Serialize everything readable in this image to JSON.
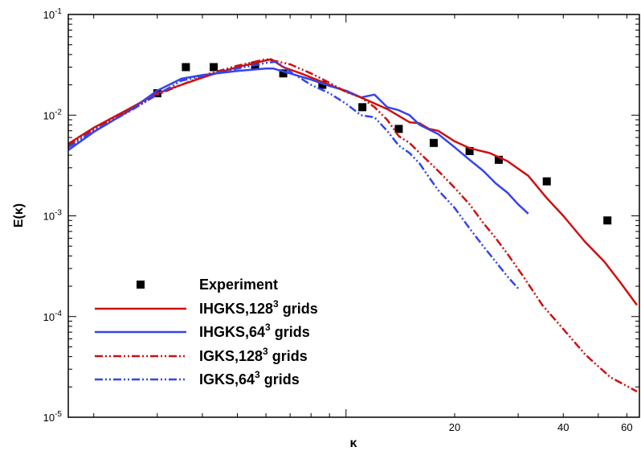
{
  "chart_data": {
    "type": "line",
    "xlabel": "κ",
    "ylabel": "E(κ)",
    "xscale": "log",
    "yscale": "log",
    "xlim": [
      1.7,
      65
    ],
    "ylim": [
      1e-05,
      0.1
    ],
    "x_tick_labels": [
      {
        "value": 20,
        "label": "20"
      },
      {
        "value": 40,
        "label": "40"
      },
      {
        "value": 60,
        "label": "60"
      }
    ],
    "y_tick_labels": [
      {
        "value": 0.1,
        "base": "10",
        "exp": "-1"
      },
      {
        "value": 0.01,
        "base": "10",
        "exp": "-2"
      },
      {
        "value": 0.001,
        "base": "10",
        "exp": "-3"
      },
      {
        "value": 0.0001,
        "base": "10",
        "exp": "-4"
      },
      {
        "value": 1e-05,
        "base": "10",
        "exp": "-5"
      }
    ],
    "legend_placement": "bottom-left",
    "grid": false,
    "series": [
      {
        "name": "Experiment",
        "label_parts": [
          "Experiment"
        ],
        "kind": "marker",
        "color": "#000000",
        "points": [
          [
            3.0,
            0.0165
          ],
          [
            3.6,
            0.03
          ],
          [
            4.3,
            0.03
          ],
          [
            5.6,
            0.031
          ],
          [
            6.7,
            0.026
          ],
          [
            8.6,
            0.02
          ],
          [
            11.1,
            0.012
          ],
          [
            14.0,
            0.0073
          ],
          [
            17.5,
            0.0053
          ],
          [
            22.0,
            0.0044
          ],
          [
            26.5,
            0.0036
          ],
          [
            36.0,
            0.0022
          ],
          [
            53.0,
            0.0009
          ]
        ]
      },
      {
        "name": "IHGKS,128³ grids",
        "label_parts": [
          "IHGKS,128",
          "3",
          " grids"
        ],
        "kind": "line",
        "style": "solid",
        "color": "#cc1111",
        "points": [
          [
            1.7,
            0.0052
          ],
          [
            2.0,
            0.0075
          ],
          [
            2.5,
            0.0115
          ],
          [
            3.0,
            0.0165
          ],
          [
            3.5,
            0.02
          ],
          [
            4.2,
            0.025
          ],
          [
            5.0,
            0.03
          ],
          [
            5.8,
            0.034
          ],
          [
            6.2,
            0.036
          ],
          [
            6.7,
            0.03
          ],
          [
            7.5,
            0.026
          ],
          [
            9.0,
            0.02
          ],
          [
            11.0,
            0.015
          ],
          [
            13.0,
            0.0115
          ],
          [
            15.0,
            0.0085
          ],
          [
            16.0,
            0.0083
          ],
          [
            17.0,
            0.0073
          ],
          [
            18.0,
            0.007
          ],
          [
            20.0,
            0.0055
          ],
          [
            22.0,
            0.0047
          ],
          [
            25.0,
            0.0042
          ],
          [
            28.0,
            0.0035
          ],
          [
            32.0,
            0.0025
          ],
          [
            36.0,
            0.0015
          ],
          [
            40.0,
            0.001
          ],
          [
            46.0,
            0.00055
          ],
          [
            52.0,
            0.00035
          ],
          [
            58.0,
            0.00021
          ],
          [
            64.0,
            0.00013
          ]
        ]
      },
      {
        "name": "IHGKS,64³ grids",
        "label_parts": [
          "IHGKS,64",
          "3",
          " grids"
        ],
        "kind": "line",
        "style": "solid",
        "color": "#3344ee",
        "points": [
          [
            1.7,
            0.0045
          ],
          [
            2.0,
            0.0068
          ],
          [
            2.5,
            0.011
          ],
          [
            3.0,
            0.0175
          ],
          [
            3.5,
            0.023
          ],
          [
            4.0,
            0.025
          ],
          [
            5.0,
            0.0275
          ],
          [
            6.0,
            0.029
          ],
          [
            6.3,
            0.029
          ],
          [
            7.0,
            0.026
          ],
          [
            8.0,
            0.0225
          ],
          [
            9.0,
            0.0195
          ],
          [
            10.0,
            0.0175
          ],
          [
            11.0,
            0.015
          ],
          [
            12.0,
            0.016
          ],
          [
            13.0,
            0.012
          ],
          [
            14.0,
            0.0112
          ],
          [
            15.0,
            0.01
          ],
          [
            16.0,
            0.008
          ],
          [
            18.0,
            0.0065
          ],
          [
            20.0,
            0.0048
          ],
          [
            22.0,
            0.0036
          ],
          [
            24.0,
            0.0028
          ],
          [
            26.0,
            0.0021
          ],
          [
            28.0,
            0.0017
          ],
          [
            30.0,
            0.0013
          ],
          [
            32.0,
            0.00105
          ]
        ]
      },
      {
        "name": "IGKS,128³ grids",
        "label_parts": [
          "IGKS,128",
          "3",
          " grids"
        ],
        "kind": "line",
        "style": "dashdotdot",
        "color": "#cc1111",
        "points": [
          [
            1.7,
            0.005
          ],
          [
            2.0,
            0.0072
          ],
          [
            2.5,
            0.011
          ],
          [
            3.0,
            0.016
          ],
          [
            3.5,
            0.02
          ],
          [
            4.2,
            0.026
          ],
          [
            5.0,
            0.031
          ],
          [
            6.0,
            0.036
          ],
          [
            6.5,
            0.034
          ],
          [
            7.0,
            0.032
          ],
          [
            8.0,
            0.026
          ],
          [
            9.0,
            0.021
          ],
          [
            10.0,
            0.017
          ],
          [
            11.0,
            0.015
          ],
          [
            12.0,
            0.012
          ],
          [
            13.0,
            0.009
          ],
          [
            14.0,
            0.0062
          ],
          [
            15.0,
            0.0053
          ],
          [
            16.0,
            0.0042
          ],
          [
            18.0,
            0.0028
          ],
          [
            20.0,
            0.0019
          ],
          [
            22.0,
            0.0013
          ],
          [
            24.0,
            0.00085
          ],
          [
            26.0,
            0.0006
          ],
          [
            28.0,
            0.00042
          ],
          [
            31.0,
            0.00025
          ],
          [
            35.0,
            0.00013
          ],
          [
            40.0,
            7.5e-05
          ],
          [
            46.0,
            4.2e-05
          ],
          [
            54.0,
            2.5e-05
          ],
          [
            64.0,
            1.8e-05
          ]
        ]
      },
      {
        "name": "IGKS,64³ grids",
        "label_parts": [
          "IGKS,64",
          "3",
          " grids"
        ],
        "kind": "line",
        "style": "dashdotdot",
        "color": "#3344ee",
        "points": [
          [
            1.7,
            0.0048
          ],
          [
            2.0,
            0.007
          ],
          [
            2.5,
            0.0108
          ],
          [
            3.0,
            0.016
          ],
          [
            3.5,
            0.022
          ],
          [
            4.0,
            0.0245
          ],
          [
            5.0,
            0.029
          ],
          [
            6.0,
            0.033
          ],
          [
            6.4,
            0.034
          ],
          [
            7.0,
            0.027
          ],
          [
            8.0,
            0.02
          ],
          [
            9.0,
            0.0165
          ],
          [
            10.0,
            0.013
          ],
          [
            11.0,
            0.01
          ],
          [
            12.0,
            0.0095
          ],
          [
            13.0,
            0.007
          ],
          [
            14.0,
            0.005
          ],
          [
            15.0,
            0.0042
          ],
          [
            16.0,
            0.0033
          ],
          [
            17.0,
            0.0024
          ],
          [
            18.0,
            0.0018
          ],
          [
            20.0,
            0.0012
          ],
          [
            22.0,
            0.00075
          ],
          [
            24.0,
            0.0005
          ],
          [
            26.0,
            0.00035
          ],
          [
            28.0,
            0.00025
          ],
          [
            30.0,
            0.00019
          ]
        ]
      }
    ]
  }
}
